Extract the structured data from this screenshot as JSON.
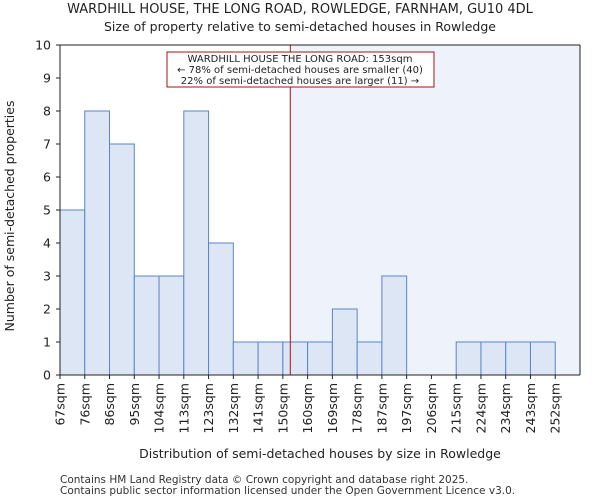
{
  "chart_data": {
    "type": "bar",
    "title": "WARDHILL HOUSE, THE LONG ROAD, ROWLEDGE, FARNHAM, GU10 4DL",
    "subtitle": "Size of property relative to semi-detached houses in Rowledge",
    "xlabel": "Distribution of semi-detached houses by size in Rowledge",
    "ylabel": "Number of semi-detached properties",
    "categories": [
      "67sqm",
      "76sqm",
      "86sqm",
      "95sqm",
      "104sqm",
      "113sqm",
      "123sqm",
      "132sqm",
      "141sqm",
      "150sqm",
      "160sqm",
      "169sqm",
      "178sqm",
      "187sqm",
      "197sqm",
      "206sqm",
      "215sqm",
      "224sqm",
      "234sqm",
      "243sqm",
      "252sqm"
    ],
    "values": [
      5,
      8,
      7,
      3,
      3,
      8,
      4,
      1,
      1,
      1,
      1,
      2,
      1,
      3,
      0,
      0,
      1,
      1,
      1,
      1,
      0
    ],
    "ylim": [
      0,
      10
    ],
    "yticks": [
      "0",
      "1",
      "2",
      "3",
      "4",
      "5",
      "6",
      "7",
      "8",
      "9",
      "10"
    ],
    "grid": false,
    "marker_value": 153,
    "marker_category_position": 9.3,
    "annotation": {
      "line1": "WARDHILL HOUSE THE LONG ROAD: 153sqm",
      "line2": "← 78% of semi-detached houses are smaller (40)",
      "line3": "22% of semi-detached houses are larger (11) →"
    },
    "colors": {
      "bar_fill": "#dce6f5",
      "bar_stroke": "#5b85c6",
      "highlight_region": "#eef2fb",
      "marker": "#aa1111",
      "axis": "#222222"
    }
  },
  "footer": {
    "line1": "Contains HM Land Registry data © Crown copyright and database right 2025.",
    "line2": "Contains public sector information licensed under the Open Government Licence v3.0."
  }
}
